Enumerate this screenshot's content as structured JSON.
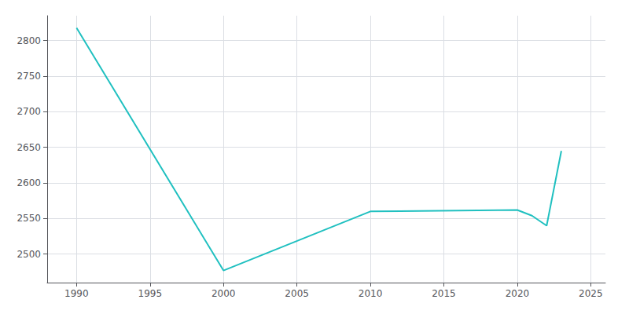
{
  "chart_data": {
    "type": "line",
    "x": [
      1990,
      2000,
      2010,
      2020,
      2021,
      2022,
      2023
    ],
    "values": [
      2818,
      2477,
      2560,
      2562,
      2554,
      2540,
      2645
    ],
    "color": "#20c0c0",
    "xlim": [
      1988,
      2026
    ],
    "ylim": [
      2460,
      2835
    ],
    "xticks": [
      1990,
      1995,
      2000,
      2005,
      2010,
      2015,
      2020,
      2025
    ],
    "yticks": [
      2500,
      2550,
      2600,
      2650,
      2700,
      2750,
      2800
    ],
    "grid": true
  }
}
